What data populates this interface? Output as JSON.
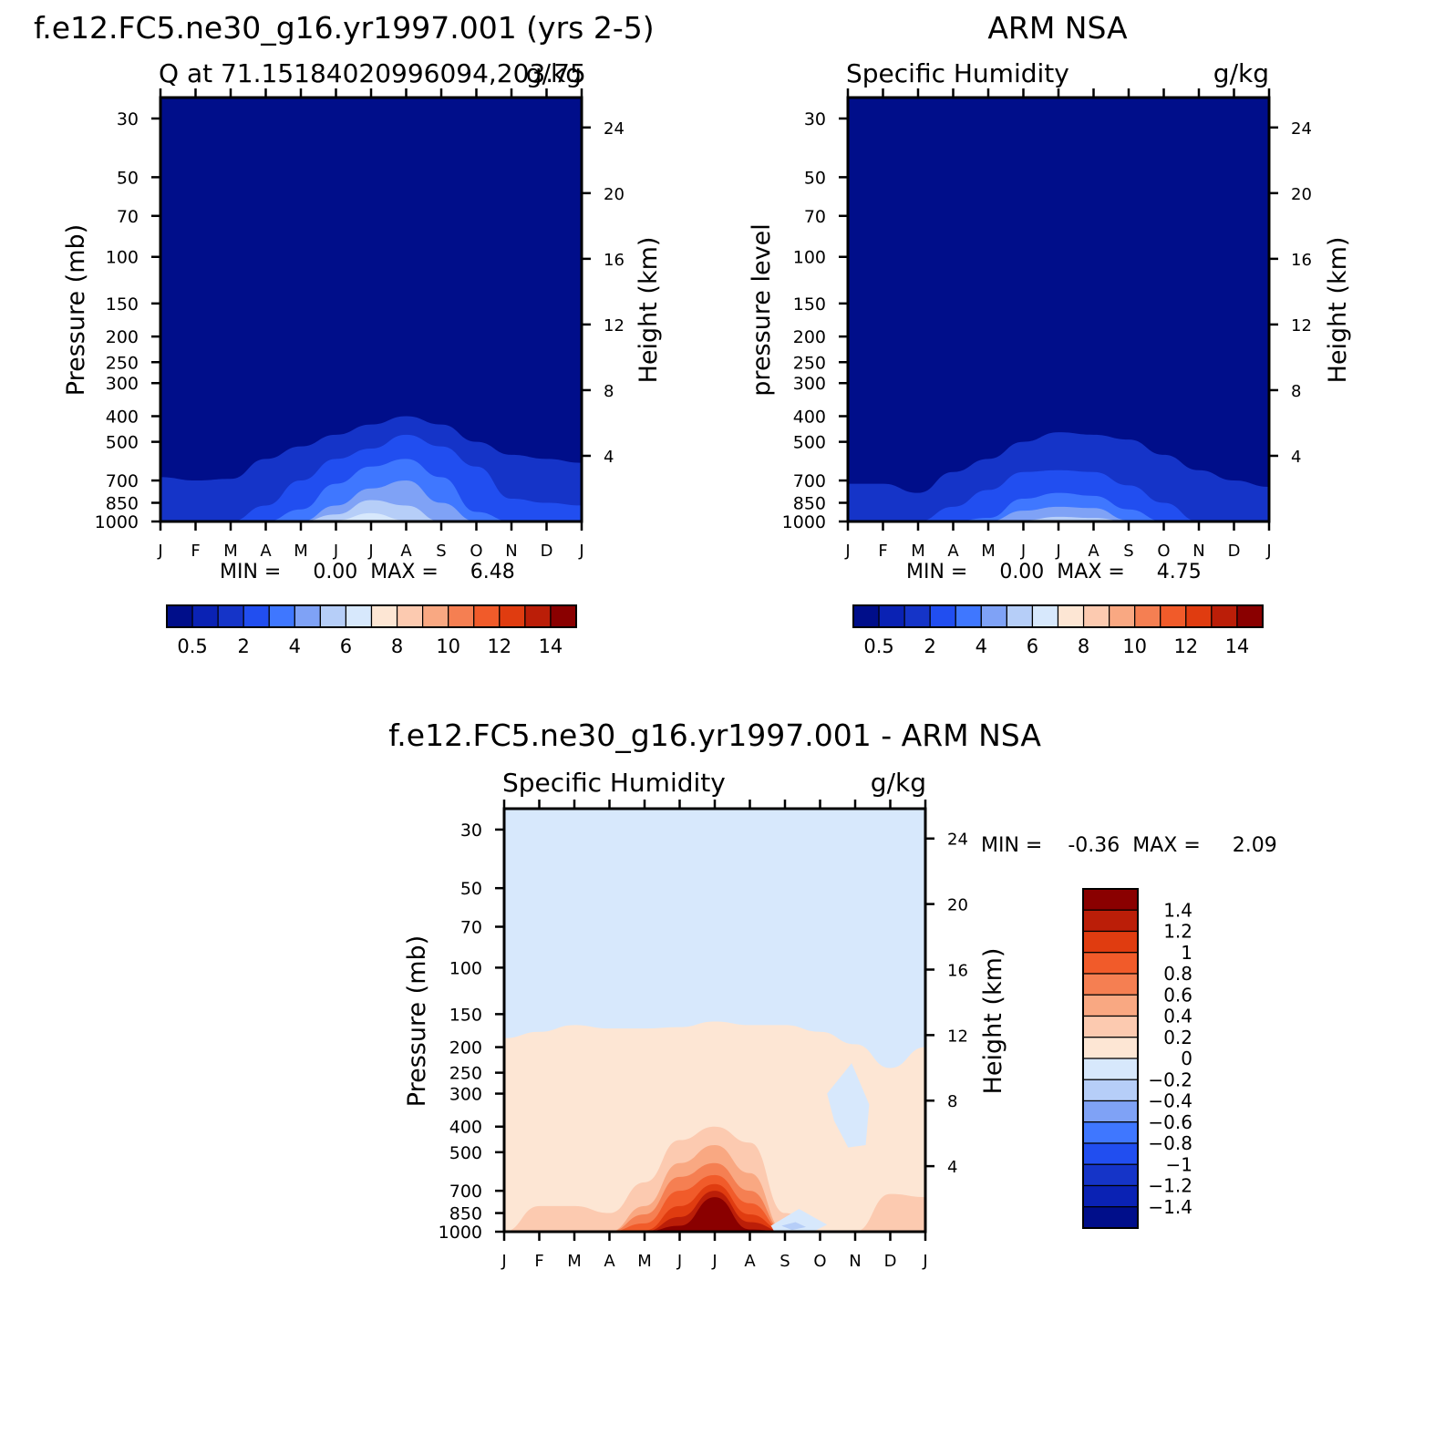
{
  "chart_data": [
    {
      "type": "heatmap",
      "title": "f.e12.FC5.ne30_g16.yr1997.001 (yrs 2-5)",
      "subtitle_left": "Q at 71.15184020996094,203.75",
      "subtitle_right": "g/kg",
      "ylabel": "Pressure (mb)",
      "ylabel_right": "Height (km)",
      "x_ticks": [
        "J",
        "F",
        "M",
        "A",
        "M",
        "J",
        "J",
        "A",
        "S",
        "O",
        "N",
        "D",
        "J"
      ],
      "y_ticks": [
        "30",
        "50",
        "70",
        "100",
        "150",
        "200",
        "250",
        "300",
        "400",
        "500",
        "700",
        "850",
        "1000"
      ],
      "y_ticks_right": [
        "24",
        "20",
        "16",
        "12",
        "8",
        "4"
      ],
      "y_scale": "log",
      "ylim": [
        1000,
        25
      ],
      "stats": "MIN =     0.00  MAX =     6.48",
      "colorbar_labels": [
        "0.5",
        "2",
        "4",
        "6",
        "8",
        "10",
        "12",
        "14"
      ],
      "bands": [
        {
          "level": 0.5,
          "color": "#1534c8",
          "tops": [
            680,
            700,
            690,
            580,
            520,
            470,
            430,
            400,
            430,
            500,
            560,
            580,
            600
          ]
        },
        {
          "level": 1,
          "color": "#214ef0",
          "tops": [
            1000,
            1000,
            1000,
            870,
            700,
            580,
            530,
            470,
            520,
            620,
            820,
            850,
            870
          ]
        },
        {
          "level": 2,
          "color": "#3f77ff",
          "tops": [
            1000,
            1000,
            1000,
            1000,
            900,
            720,
            620,
            580,
            680,
            920,
            1000,
            1000,
            1000
          ]
        },
        {
          "level": 3,
          "color": "#7fa2f6",
          "tops": [
            1000,
            1000,
            1000,
            1000,
            1000,
            870,
            750,
            700,
            850,
            1000,
            1000,
            1000,
            1000
          ]
        },
        {
          "level": 4,
          "color": "#b6cef8",
          "tops": [
            1000,
            1000,
            1000,
            1000,
            1000,
            940,
            830,
            870,
            1000,
            1000,
            1000,
            1000,
            1000
          ]
        },
        {
          "level": 5,
          "color": "#d7e8fc",
          "tops": [
            1000,
            1000,
            1000,
            1000,
            1000,
            990,
            930,
            990,
            1000,
            1000,
            1000,
            1000,
            1000
          ]
        }
      ]
    },
    {
      "type": "heatmap",
      "title": "ARM NSA",
      "subtitle_left": "Specific Humidity",
      "subtitle_right": "g/kg",
      "ylabel": "pressure level",
      "ylabel_right": "Height (km)",
      "x_ticks": [
        "J",
        "F",
        "M",
        "A",
        "M",
        "J",
        "J",
        "A",
        "S",
        "O",
        "N",
        "D",
        "J"
      ],
      "y_ticks": [
        "30",
        "50",
        "70",
        "100",
        "150",
        "200",
        "250",
        "300",
        "400",
        "500",
        "700",
        "850",
        "1000"
      ],
      "y_ticks_right": [
        "24",
        "20",
        "16",
        "12",
        "8",
        "4"
      ],
      "y_scale": "log",
      "ylim": [
        1000,
        25
      ],
      "stats": "MIN =     0.00  MAX =     4.75",
      "colorbar_labels": [
        "0.5",
        "2",
        "4",
        "6",
        "8",
        "10",
        "12",
        "14"
      ],
      "bands": [
        {
          "level": 0.5,
          "color": "#1534c8",
          "tops": [
            720,
            720,
            780,
            650,
            580,
            500,
            460,
            470,
            490,
            560,
            640,
            700,
            740
          ]
        },
        {
          "level": 1,
          "color": "#214ef0",
          "tops": [
            1000,
            1000,
            1000,
            880,
            760,
            650,
            640,
            650,
            730,
            850,
            1000,
            1000,
            1000
          ]
        },
        {
          "level": 2,
          "color": "#3f77ff",
          "tops": [
            1000,
            1000,
            1000,
            1000,
            970,
            820,
            780,
            800,
            900,
            1000,
            1000,
            1000,
            1000
          ]
        },
        {
          "level": 3,
          "color": "#7fa2f6",
          "tops": [
            1000,
            1000,
            1000,
            1000,
            1000,
            910,
            880,
            890,
            990,
            1000,
            1000,
            1000,
            1000
          ]
        },
        {
          "level": 4,
          "color": "#b6cef8",
          "tops": [
            1000,
            1000,
            1000,
            1000,
            1000,
            990,
            960,
            970,
            1000,
            1000,
            1000,
            1000,
            1000
          ]
        }
      ]
    },
    {
      "type": "heatmap",
      "title": "f.e12.FC5.ne30_g16.yr1997.001 - ARM NSA",
      "subtitle_left": "Specific Humidity",
      "subtitle_right": "g/kg",
      "ylabel": "Pressure (mb)",
      "ylabel_right": "Height (km)",
      "x_ticks": [
        "J",
        "F",
        "M",
        "A",
        "M",
        "J",
        "J",
        "A",
        "S",
        "O",
        "N",
        "D",
        "J"
      ],
      "y_ticks": [
        "30",
        "50",
        "70",
        "100",
        "150",
        "200",
        "250",
        "300",
        "400",
        "500",
        "700",
        "850",
        "1000"
      ],
      "y_ticks_right": [
        "24",
        "20",
        "16",
        "12",
        "8",
        "4"
      ],
      "y_scale": "log",
      "ylim": [
        1000,
        25
      ],
      "stats": "MIN =    -0.36  MAX =     2.09",
      "colorbar_labels": [
        "1.4",
        "1.2",
        "1",
        "0.8",
        "0.6",
        "0.4",
        "0.2",
        "0",
        "-0.2",
        "-0.4",
        "-0.6",
        "-0.8",
        "-1",
        "-1.2",
        "-1.4"
      ],
      "background_color": "#d7e8fc",
      "bands": [
        {
          "level": 0,
          "color": "#fde6d4",
          "tops": [
            185,
            175,
            165,
            170,
            170,
            168,
            160,
            165,
            165,
            175,
            195,
            240,
            200
          ]
        },
        {
          "level": 0.2,
          "color": "#fccab0",
          "tops": [
            1000,
            800,
            800,
            850,
            650,
            450,
            400,
            460,
            850,
            1000,
            1000,
            720,
            740
          ]
        },
        {
          "level": 0.4,
          "color": "#f9a882",
          "tops": [
            1000,
            1000,
            1000,
            1000,
            800,
            550,
            470,
            600,
            1000,
            1000,
            1000,
            1000,
            1000
          ]
        },
        {
          "level": 0.6,
          "color": "#f57f52",
          "tops": [
            1000,
            1000,
            1000,
            1000,
            860,
            620,
            550,
            700,
            1000,
            1000,
            1000,
            1000,
            1000
          ]
        },
        {
          "level": 0.8,
          "color": "#f15b2a",
          "tops": [
            1000,
            1000,
            1000,
            1000,
            930,
            700,
            610,
            780,
            1000,
            1000,
            1000,
            1000,
            1000
          ]
        },
        {
          "level": 1,
          "color": "#e03c10",
          "tops": [
            1000,
            1000,
            1000,
            1000,
            990,
            800,
            660,
            860,
            1000,
            1000,
            1000,
            1000,
            1000
          ]
        },
        {
          "level": 1.2,
          "color": "#bb1e08",
          "tops": [
            1000,
            1000,
            1000,
            1000,
            1000,
            880,
            700,
            920,
            1000,
            1000,
            1000,
            1000,
            1000
          ]
        },
        {
          "level": 1.4,
          "color": "#8a0000",
          "tops": [
            1000,
            1000,
            1000,
            1000,
            1000,
            950,
            740,
            980,
            1000,
            1000,
            1000,
            1000,
            1000
          ]
        }
      ],
      "negative_regions": [
        {
          "color": "#d7e8fc",
          "x": [
            9.2,
            9.9,
            10.4,
            10.3,
            9.8,
            9.4
          ],
          "p": [
            300,
            230,
            330,
            470,
            480,
            380
          ]
        },
        {
          "color": "#d7e8fc",
          "x": [
            7.6,
            8.4,
            9.2,
            8.8,
            8.2,
            7.7
          ],
          "p": [
            950,
            820,
            940,
            1000,
            1000,
            1000
          ]
        },
        {
          "color": "#b6cef8",
          "x": [
            7.9,
            8.3,
            8.6,
            8.2
          ],
          "p": [
            950,
            920,
            960,
            985
          ]
        }
      ]
    }
  ],
  "colorbar_colors": [
    "#000e8a",
    "#0a22b4",
    "#1534c8",
    "#214ef0",
    "#3f77ff",
    "#7fa2f6",
    "#b6cef8",
    "#d7e8fc",
    "#fde6d4",
    "#fccab0",
    "#f9a882",
    "#f57f52",
    "#f15b2a",
    "#e03c10",
    "#bb1e08",
    "#8a0000"
  ]
}
